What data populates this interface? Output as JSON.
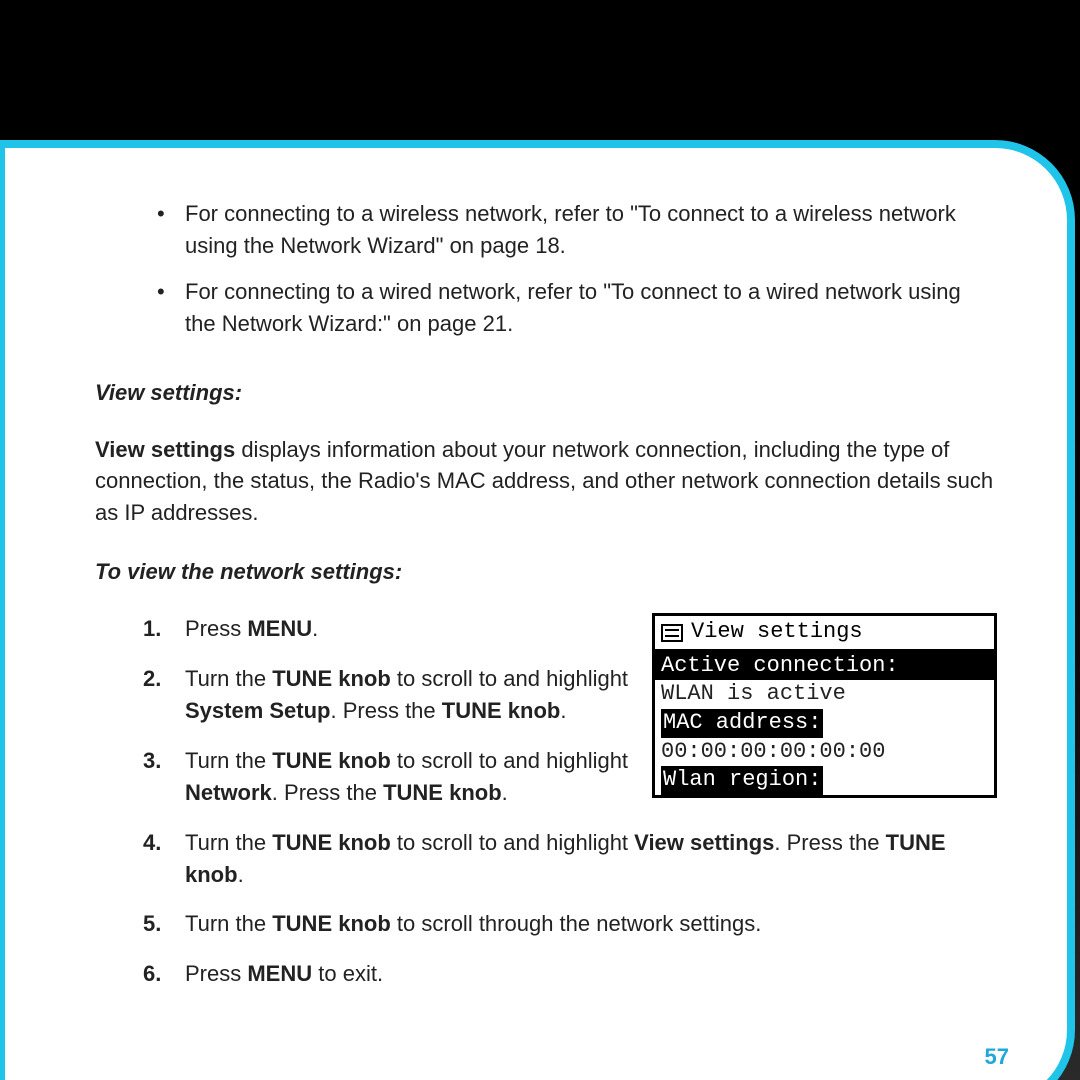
{
  "colors": {
    "page_bg": "#ffffff",
    "frame_bg_top": "#000000",
    "frame_bg_bottom": "#2a2a2a",
    "accent_cyan": "#1fc4e8",
    "page_number_color": "#1fa8d8",
    "text_color": "#222222",
    "lcd_border": "#000000",
    "lcd_inverse_bg": "#000000",
    "lcd_inverse_fg": "#ffffff"
  },
  "typography": {
    "body_font": "Helvetica Neue, Arial, sans-serif",
    "body_size_pt": 16,
    "lcd_font": "Courier New, monospace",
    "lcd_size_pt": 16
  },
  "intro_bullets": [
    "For connecting to a wireless network, refer to \"To connect to a wireless network using the Network Wizard\" on page 18.",
    "For connecting to a wired network, refer to \"To connect to a wired network using the Network Wizard:\" on page 21."
  ],
  "headings": {
    "view_settings": "View settings:",
    "to_view": "To view the network settings:"
  },
  "paragraph": {
    "lead_bold": "View settings",
    "rest": " displays information about your network connection, including the type of connection, the status, the Radio's MAC address, and other network connection details such as IP addresses."
  },
  "steps": [
    {
      "pre": "Press ",
      "b1": "MENU",
      "post": "."
    },
    {
      "pre": "Turn the ",
      "b1": "TUNE knob",
      "mid1": " to scroll to and highlight ",
      "b2": "System Setup",
      "mid2": ". Press the ",
      "b3": "TUNE knob",
      "post": "."
    },
    {
      "pre": "Turn the ",
      "b1": "TUNE knob",
      "mid1": " to scroll to and highlight ",
      "b2": "Network",
      "mid2": ". Press the ",
      "b3": "TUNE knob",
      "post": "."
    },
    {
      "pre": "Turn the ",
      "b1": "TUNE knob",
      "mid1": " to scroll to and highlight ",
      "b2": "View settings",
      "mid2": ". Press the ",
      "b3": "TUNE knob",
      "post": "."
    },
    {
      "pre": "Turn the ",
      "b1": "TUNE knob",
      "post": " to scroll through the network settings."
    },
    {
      "pre": "Press ",
      "b1": "MENU",
      "post": " to exit."
    }
  ],
  "lcd": {
    "title": "View settings",
    "rows": [
      {
        "text": "Active connection:",
        "inverse": true,
        "full": true
      },
      {
        "text": "WLAN is active",
        "inverse": false,
        "full": false
      },
      {
        "text": "MAC address:",
        "inverse": true,
        "full": false
      },
      {
        "text": "00:00:00:00:00:00",
        "inverse": false,
        "full": false
      },
      {
        "text": "Wlan region:",
        "inverse": true,
        "full": false
      }
    ]
  },
  "page_number": "57"
}
